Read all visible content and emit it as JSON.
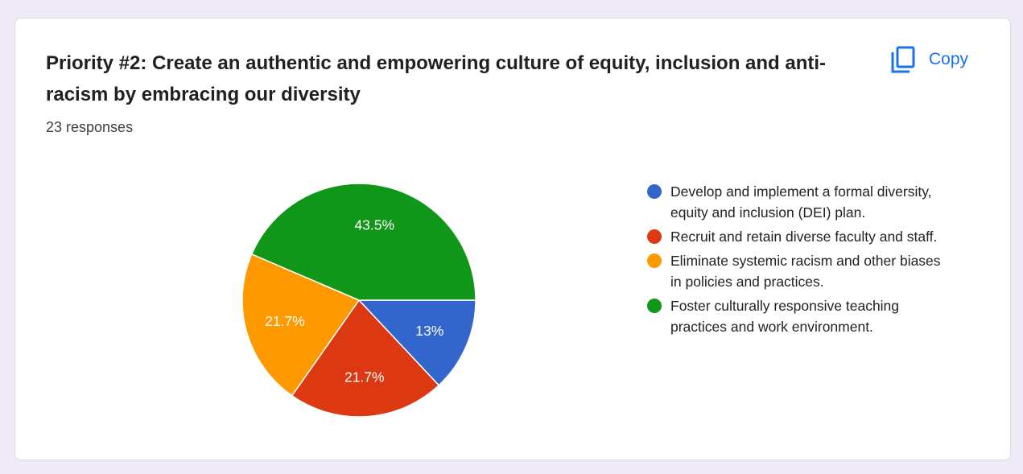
{
  "question": {
    "title": "Priority #2: Create an authentic and empowering culture of equity, inclusion and anti-racism by embracing our diversity",
    "responses_text": "23 responses"
  },
  "copy_button": {
    "label": "Copy",
    "icon": "copy-icon",
    "color": "#1a73e8"
  },
  "chart_data": {
    "type": "pie",
    "categories": [
      "Develop and implement a formal diversity, equity and inclusion (DEI) plan.",
      "Recruit and retain diverse faculty and staff.",
      "Eliminate systemic racism and other biases in policies and practices.",
      "Foster culturally responsive teaching practices and work environment."
    ],
    "values": [
      13,
      21.7,
      21.7,
      43.5
    ],
    "value_labels": [
      "13%",
      "21.7%",
      "21.7%",
      "43.5%"
    ],
    "colors": [
      "#3366cc",
      "#dc3912",
      "#ff9900",
      "#109618"
    ],
    "legend": "right",
    "title": "",
    "xlabel": "",
    "ylabel": ""
  }
}
